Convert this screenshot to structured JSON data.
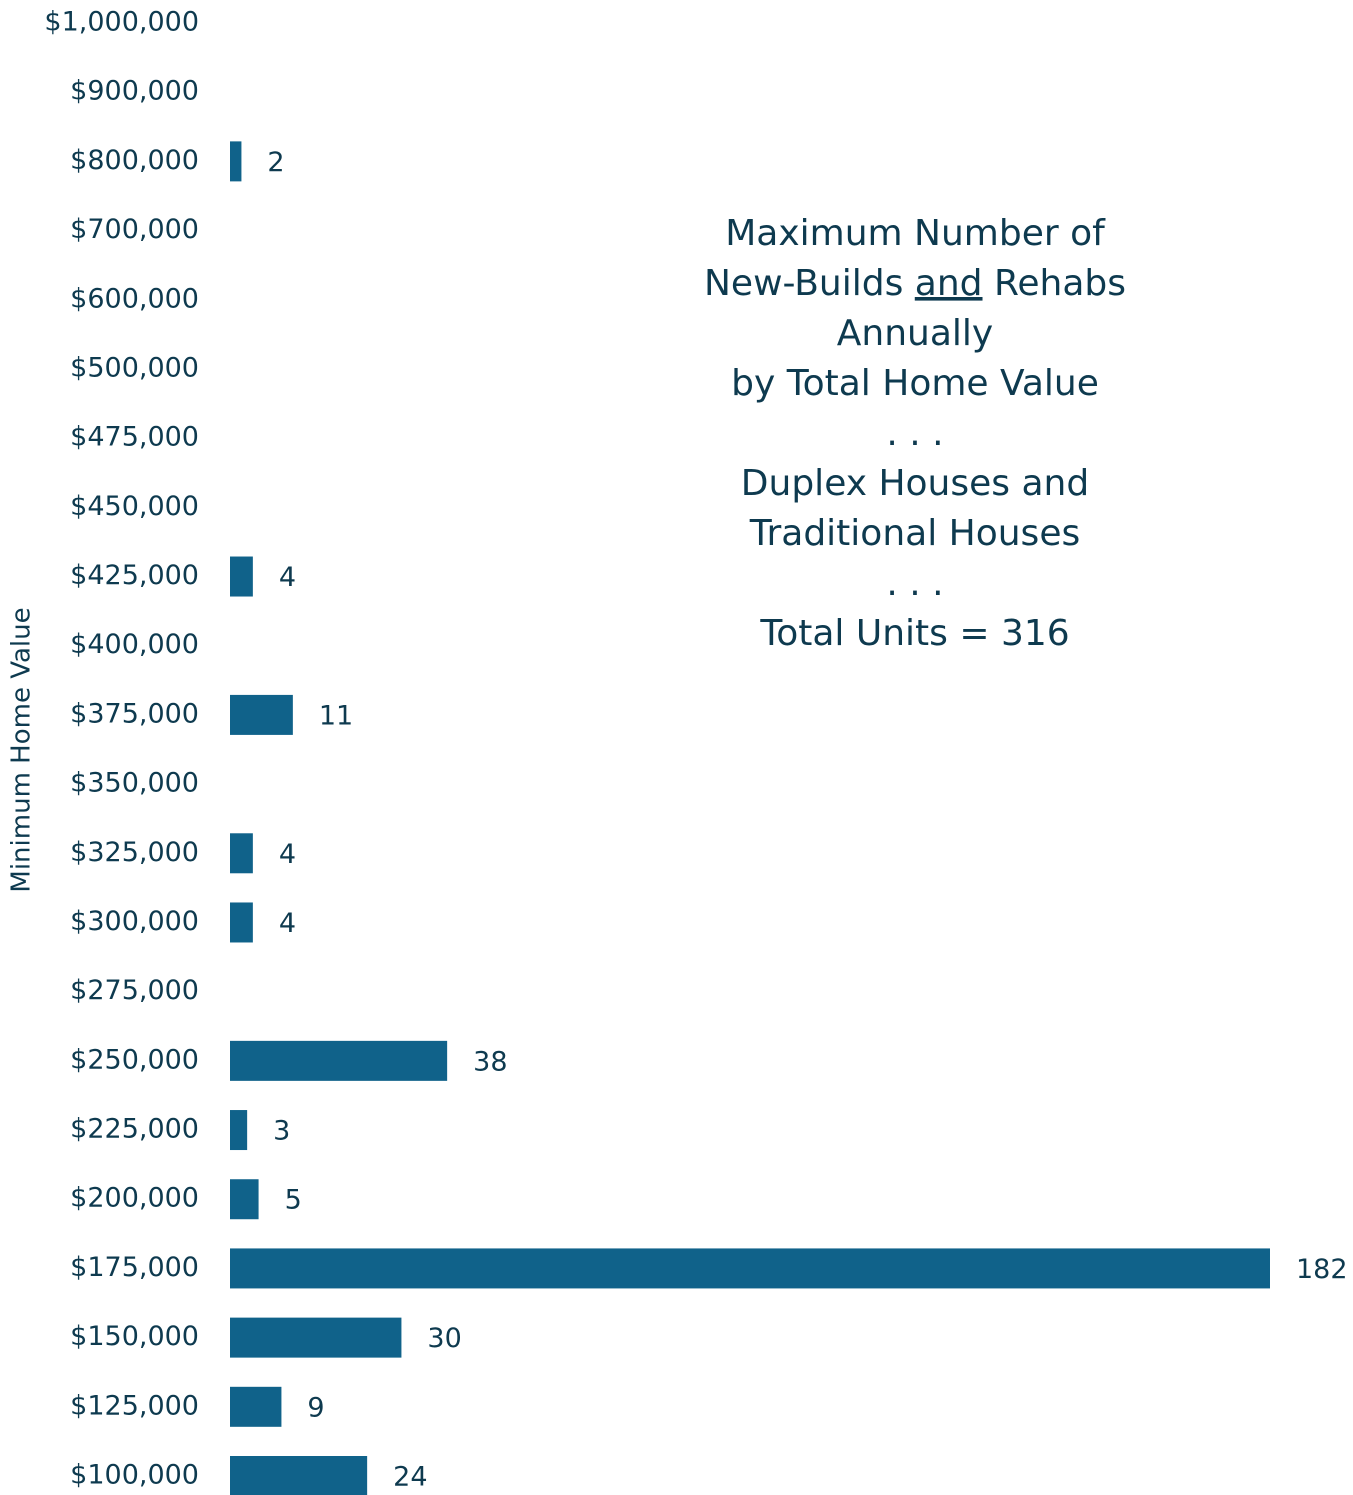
{
  "chart_data": {
    "type": "hbar",
    "title_lines": [
      [
        "Maximum Number of"
      ],
      [
        "New-Builds ",
        "and",
        " Rehabs"
      ],
      [
        "Annually"
      ],
      [
        "by Total Home Value"
      ],
      [
        ". . ."
      ],
      [
        "Duplex Houses and"
      ],
      [
        "Traditional Houses"
      ],
      [
        ". . ."
      ],
      [
        "Total Units = 316"
      ]
    ],
    "title_underline": {
      "line": 1,
      "segment": 1
    },
    "y_label": "Minimum Home Value",
    "categories": [
      "$1,000,000",
      "$900,000",
      "$800,000",
      "$700,000",
      "$600,000",
      "$500,000",
      "$475,000",
      "$450,000",
      "$425,000",
      "$400,000",
      "$375,000",
      "$350,000",
      "$325,000",
      "$300,000",
      "$275,000",
      "$250,000",
      "$225,000",
      "$200,000",
      "$175,000",
      "$150,000",
      "$125,000",
      "$100,000"
    ],
    "values": [
      null,
      null,
      2,
      null,
      null,
      null,
      null,
      null,
      4,
      null,
      11,
      null,
      4,
      4,
      null,
      38,
      3,
      5,
      182,
      30,
      9,
      24
    ],
    "color": "#10628a",
    "text_color": "#0e3a4f"
  }
}
